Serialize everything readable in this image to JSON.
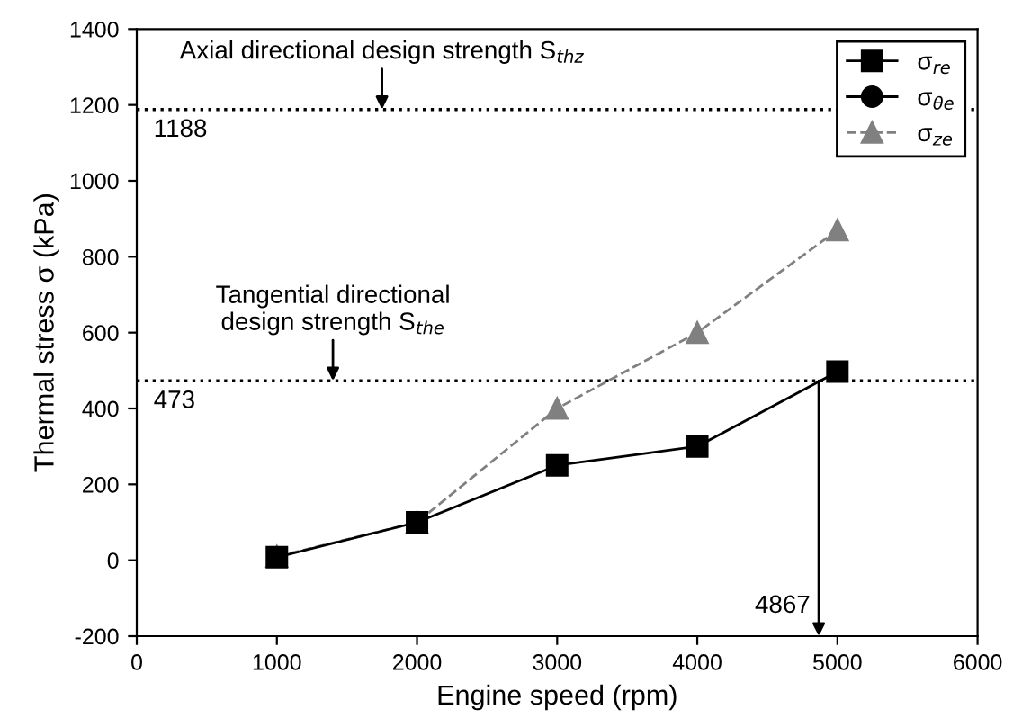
{
  "chart_data": {
    "type": "line",
    "xlabel": "Engine speed (rpm)",
    "ylabel": "Thermal stress σ (kPa)",
    "x": [
      1000,
      2000,
      3000,
      4000,
      5000
    ],
    "series": [
      {
        "name": "σ$_{re}$",
        "color": "#000000",
        "values": [
          8,
          100,
          250,
          300,
          497
        ],
        "marker": "square",
        "line_style": "solid"
      },
      {
        "name": "σ$_{θe}$",
        "color": "#000000",
        "values": [
          null,
          null,
          null,
          null,
          null
        ],
        "marker": "circle",
        "line_style": "solid"
      },
      {
        "name": "σ$_{ze}$",
        "color": "#808080",
        "values": [
          10,
          100,
          400,
          600,
          870
        ],
        "marker": "triangle",
        "line_style": "dashed"
      }
    ],
    "xlim": [
      0,
      6000
    ],
    "xticks": [
      0,
      1000,
      2000,
      3000,
      4000,
      5000,
      6000
    ],
    "ylim": [
      -200,
      1400
    ],
    "yticks": [
      -200,
      0,
      200,
      400,
      600,
      800,
      1000,
      1200,
      1400
    ],
    "ref_lines": [
      {
        "axis": "y",
        "value": 1188,
        "label": "1188",
        "line_style": "dotted",
        "color": "#000000"
      },
      {
        "axis": "y",
        "value": 473,
        "label": "473",
        "line_style": "dotted",
        "color": "#000000"
      }
    ],
    "annotations": [
      {
        "text": "Axial directional design strength S$_{thz}$",
        "x": 1750,
        "y": 1188
      },
      {
        "text": "Tangential directional\ndesign strength S$_{the}$",
        "x": 1400,
        "y": 473
      },
      {
        "text": "4867",
        "x": 4867,
        "y": 473
      }
    ],
    "legend": "top right",
    "grid": false
  }
}
